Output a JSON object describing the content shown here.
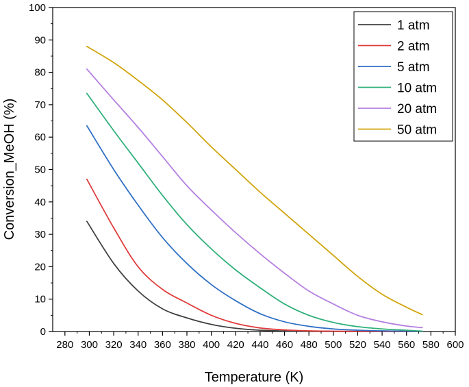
{
  "chart_data": {
    "type": "line",
    "title": "",
    "xlabel": "Temperature (K)",
    "ylabel": "Conversion_MeOH (%)",
    "xlim": [
      270,
      600
    ],
    "ylim": [
      0,
      100
    ],
    "x_ticks": [
      280,
      300,
      320,
      340,
      360,
      380,
      400,
      420,
      440,
      460,
      480,
      500,
      520,
      540,
      560,
      580,
      600
    ],
    "y_ticks": [
      0,
      10,
      20,
      30,
      40,
      50,
      60,
      70,
      80,
      90,
      100
    ],
    "grid": false,
    "legend_position": "top-right",
    "x": [
      298,
      320,
      340,
      360,
      380,
      400,
      420,
      440,
      460,
      480,
      500,
      520,
      540,
      560,
      573
    ],
    "series": [
      {
        "name": "1 atm",
        "color": "#404040",
        "values": [
          34,
          21,
          12.5,
          7,
          4.2,
          2.2,
          1,
          0.4,
          0.15,
          0.05,
          0.02,
          0,
          0,
          0,
          0
        ]
      },
      {
        "name": "2 atm",
        "color": "#e03c3c",
        "values": [
          47,
          32,
          20,
          13,
          8.8,
          5,
          2.5,
          1.1,
          0.5,
          0.2,
          0.1,
          0.05,
          0,
          0,
          0
        ]
      },
      {
        "name": "5 atm",
        "color": "#2f6fc4",
        "values": [
          63.5,
          50,
          39,
          29,
          21,
          14.5,
          9.5,
          5.5,
          3,
          1.6,
          0.8,
          0.4,
          0.2,
          0.1,
          0
        ]
      },
      {
        "name": "10 atm",
        "color": "#2fb07a",
        "values": [
          73.5,
          62,
          52,
          42,
          33,
          25.5,
          19,
          13.5,
          8.5,
          5,
          2.8,
          1.5,
          0.8,
          0.4,
          0.1
        ]
      },
      {
        "name": "20 atm",
        "color": "#b47fe0",
        "values": [
          81,
          71.5,
          63,
          54,
          45,
          37.5,
          30.5,
          24,
          18,
          12.5,
          8.5,
          5,
          3,
          1.7,
          1.2
        ]
      },
      {
        "name": "50 atm",
        "color": "#d1a40b",
        "values": [
          88,
          83,
          77.5,
          71.5,
          64.5,
          57,
          50,
          43,
          36.5,
          30,
          23.5,
          17,
          11.5,
          7.5,
          5.2
        ]
      }
    ]
  }
}
